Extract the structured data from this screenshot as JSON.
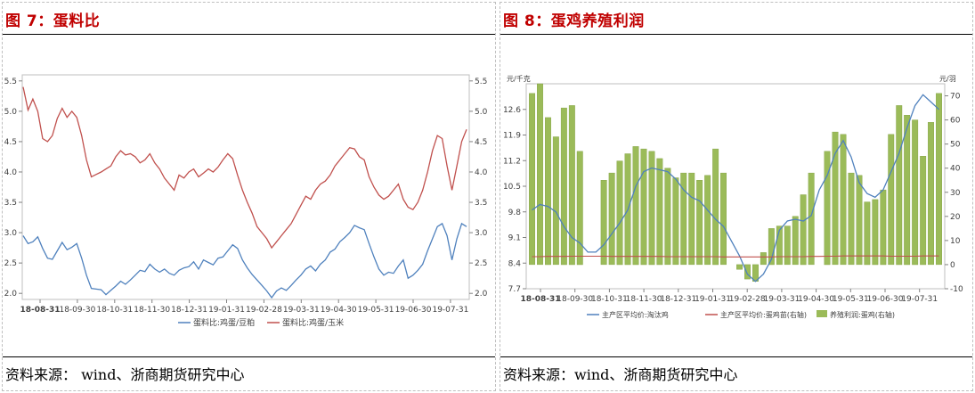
{
  "panels": [
    {
      "title": "图 7：蛋料比",
      "source": "资料来源：  wind、浙商期货研究中心"
    },
    {
      "title": "图 8：蛋鸡养殖利润",
      "source": "资料来源：wind、浙商期货研究中心"
    }
  ],
  "chart_data": [
    {
      "type": "line",
      "title": "",
      "x_tick_labels": [
        "18-08-31",
        "18-09-30",
        "18-10-31",
        "18-11-30",
        "18-12-31",
        "19-01-31",
        "19-02-28",
        "19-03-31",
        "19-04-30",
        "19-05-31",
        "19-06-30",
        "19-07-31"
      ],
      "y_left_ticks": [
        "2.0",
        "2.5",
        "3.0",
        "3.5",
        "4.0",
        "4.5",
        "5.0",
        "5.5"
      ],
      "y_right_ticks": [
        "2.0",
        "2.5",
        "3.0",
        "3.5",
        "4.0",
        "4.5",
        "5.0",
        "5.5"
      ],
      "ylim": [
        1.9,
        5.6
      ],
      "grid": false,
      "legend_position": "bottom",
      "series": [
        {
          "name": "蛋料比:鸡蛋/豆粕",
          "color": "#4f81bd",
          "values": [
            2.95,
            2.82,
            2.85,
            2.93,
            2.74,
            2.58,
            2.56,
            2.7,
            2.84,
            2.72,
            2.76,
            2.82,
            2.58,
            2.3,
            2.08,
            2.07,
            2.06,
            1.98,
            2.05,
            2.12,
            2.2,
            2.15,
            2.22,
            2.3,
            2.38,
            2.36,
            2.48,
            2.4,
            2.35,
            2.4,
            2.33,
            2.3,
            2.38,
            2.42,
            2.44,
            2.52,
            2.4,
            2.55,
            2.51,
            2.47,
            2.58,
            2.6,
            2.7,
            2.8,
            2.74,
            2.55,
            2.42,
            2.31,
            2.22,
            2.13,
            2.04,
            1.93,
            2.04,
            2.09,
            2.05,
            2.13,
            2.22,
            2.3,
            2.4,
            2.45,
            2.37,
            2.48,
            2.55,
            2.68,
            2.73,
            2.85,
            2.92,
            3.0,
            3.12,
            3.08,
            3.05,
            2.82,
            2.6,
            2.4,
            2.3,
            2.35,
            2.33,
            2.45,
            2.55,
            2.25,
            2.3,
            2.38,
            2.48,
            2.7,
            2.9,
            3.1,
            3.15,
            2.95,
            2.55,
            2.9,
            3.15,
            3.1
          ]
        },
        {
          "name": "蛋料比:鸡蛋/玉米",
          "color": "#c0504d",
          "values": [
            5.4,
            5.02,
            5.2,
            5.0,
            4.55,
            4.5,
            4.6,
            4.88,
            5.05,
            4.9,
            5.0,
            4.9,
            4.6,
            4.2,
            3.92,
            3.96,
            4.0,
            4.05,
            4.1,
            4.25,
            4.35,
            4.28,
            4.3,
            4.25,
            4.15,
            4.2,
            4.3,
            4.15,
            4.05,
            3.9,
            3.8,
            3.7,
            3.95,
            3.9,
            4.0,
            4.05,
            3.92,
            3.98,
            4.05,
            4.0,
            4.08,
            4.2,
            4.3,
            4.22,
            3.95,
            3.7,
            3.5,
            3.32,
            3.1,
            3.0,
            2.9,
            2.75,
            2.85,
            2.95,
            3.05,
            3.15,
            3.3,
            3.45,
            3.6,
            3.55,
            3.7,
            3.8,
            3.85,
            3.95,
            4.1,
            4.2,
            4.3,
            4.4,
            4.38,
            4.25,
            4.2,
            3.92,
            3.75,
            3.62,
            3.55,
            3.6,
            3.7,
            3.8,
            3.55,
            3.42,
            3.38,
            3.5,
            3.7,
            4.0,
            4.35,
            4.6,
            4.55,
            4.1,
            3.7,
            4.1,
            4.5,
            4.7
          ]
        }
      ]
    },
    {
      "type": "bar+line",
      "title": "",
      "left_axis_unit": "元/千克",
      "right_axis_unit": "元/羽",
      "x_tick_labels": [
        "18-08-31",
        "18-09-30",
        "18-10-31",
        "18-11-30",
        "18-12-31",
        "19-01-31",
        "19-02-28",
        "19-03-31",
        "19-04-30",
        "19-05-31",
        "19-06-30",
        "19-07-31"
      ],
      "y_left_ticks": [
        "7.7",
        "8.4",
        "9.1",
        "9.8",
        "10.5",
        "11.2",
        "11.9",
        "12.6"
      ],
      "y_right_ticks": [
        "-10",
        "0",
        "10",
        "20",
        "30",
        "40",
        "50",
        "60",
        "70"
      ],
      "ylim_left": [
        7.7,
        13.3
      ],
      "ylim_right": [
        -10,
        75
      ],
      "grid": false,
      "legend_position": "bottom",
      "series": [
        {
          "name": "主产区平均价:淘汰鸡",
          "color": "#4f81bd",
          "axis": "left",
          "type": "line",
          "values": [
            9.85,
            10.0,
            9.95,
            9.8,
            9.4,
            9.1,
            8.95,
            8.7,
            8.7,
            8.9,
            9.2,
            9.5,
            9.85,
            10.5,
            10.9,
            11.0,
            10.95,
            10.9,
            10.7,
            10.4,
            10.2,
            10.1,
            9.85,
            9.6,
            9.4,
            9.0,
            8.6,
            8.1,
            7.9,
            8.1,
            8.5,
            9.3,
            9.55,
            9.6,
            9.55,
            9.7,
            10.4,
            10.8,
            11.4,
            11.75,
            11.3,
            10.6,
            10.3,
            10.2,
            10.4,
            10.9,
            11.4,
            12.1,
            12.7,
            13.0,
            12.8,
            12.6
          ]
        },
        {
          "name": "主产区平均价:蛋鸡苗(右轴)",
          "color": "#c0504d",
          "axis": "right",
          "type": "line",
          "values": [
            3.3,
            3.3,
            3.4,
            3.4,
            3.4,
            3.5,
            3.5,
            3.5,
            3.5,
            3.5,
            3.4,
            3.4,
            3.4,
            3.4,
            3.4,
            3.4,
            3.4,
            3.3,
            3.3,
            3.3,
            3.3,
            3.3,
            3.3,
            3.3,
            3.2,
            3.2,
            3.2,
            3.2,
            3.2,
            3.2,
            3.2,
            3.3,
            3.3,
            3.3,
            3.3,
            3.4,
            3.4,
            3.5,
            3.5,
            3.6,
            3.6,
            3.6,
            3.6,
            3.6,
            3.6,
            3.5,
            3.5,
            3.5,
            3.5,
            3.6,
            3.6,
            3.6
          ]
        },
        {
          "name": "养殖利润:蛋鸡(右轴)",
          "color": "#9bbb59",
          "axis": "right",
          "type": "bar",
          "values": [
            71,
            75,
            61,
            53,
            65,
            66,
            47,
            null,
            null,
            35,
            38,
            43,
            46,
            49,
            48,
            47,
            44,
            40,
            36,
            38,
            38,
            35,
            37,
            48,
            38,
            null,
            -2,
            -6,
            -7,
            5,
            15,
            16,
            16,
            20,
            29,
            38,
            null,
            47,
            55,
            54,
            38,
            37,
            26,
            27,
            31,
            54,
            66,
            62,
            60,
            45,
            59,
            71
          ]
        }
      ]
    }
  ]
}
